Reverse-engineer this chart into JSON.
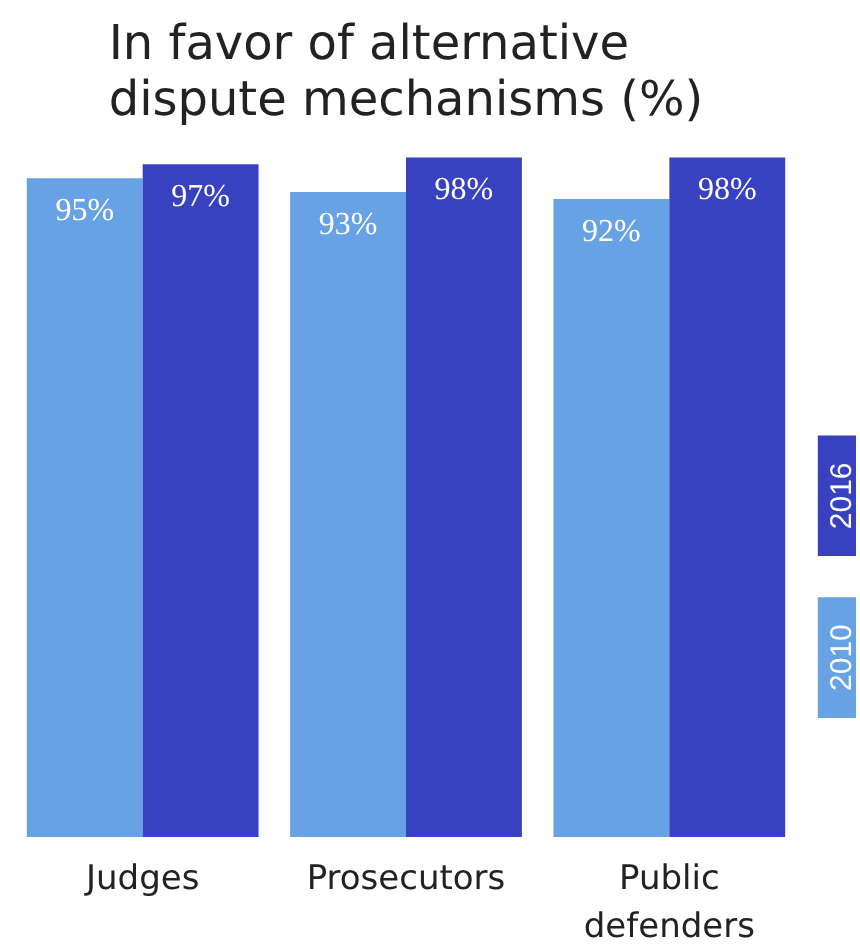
{
  "chart_data": {
    "type": "bar",
    "title": "In favor of alternative\ndispute mechanisms (%)",
    "categories": [
      "Judges",
      "Prosecutors",
      "Public\ndefenders"
    ],
    "series": [
      {
        "name": "2010",
        "color": "#66a2e4",
        "values": [
          95,
          93,
          92
        ],
        "value_labels": [
          "95%",
          "93%",
          "92%"
        ]
      },
      {
        "name": "2016",
        "color": "#3841bf",
        "values": [
          97,
          98,
          98
        ],
        "value_labels": [
          "97%",
          "98%",
          "98%"
        ]
      }
    ],
    "legend": "right",
    "grid": false
  }
}
